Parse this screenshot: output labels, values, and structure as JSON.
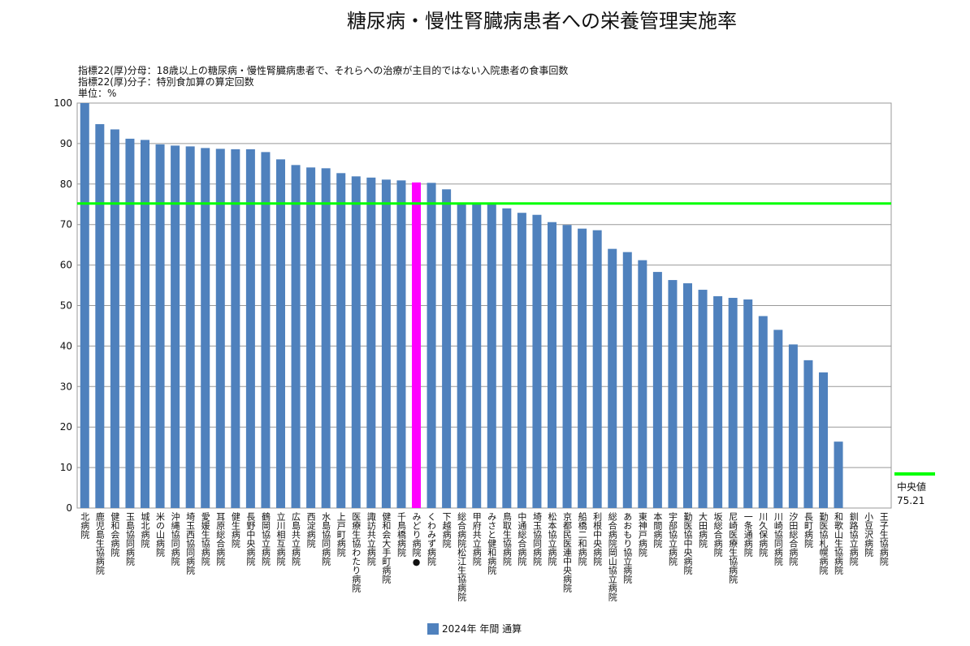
{
  "chart_data": {
    "type": "bar",
    "title": "糖尿病・慢性腎臓病患者への栄養管理実施率",
    "notes": [
      "指標22(厚)分母：18歳以上の糖尿病・慢性腎臓病患者で、それらへの治療が主目的ではない入院患者の食事回数",
      "指標22(厚)分子：特別食加算の算定回数",
      "単位：%"
    ],
    "ylim": [
      0,
      100
    ],
    "yticks": [
      0,
      10,
      20,
      30,
      40,
      50,
      60,
      70,
      80,
      90,
      100
    ],
    "grid": true,
    "categories": [
      "北病院",
      "鹿児島生協病院",
      "健和会病院",
      "玉島協同病院",
      "城北病院",
      "米の山病院",
      "沖縄協同病院",
      "埼玉西協同病院",
      "愛媛生協病院",
      "耳原総合病院",
      "健生病院",
      "長野中央病院",
      "鶴岡協立病院",
      "立川相互病院",
      "広島共立病院",
      "西淀病院",
      "水島協同病院",
      "上戸町病院",
      "医療生協わたり病院",
      "諏訪共立病院",
      "健和会大手町病院",
      "千鳥橋病院",
      "みどり病院●",
      "くわみず病院",
      "下越病院",
      "総合病院松江生協病院",
      "甲府共立病院",
      "みさと健和病院",
      "鳥取生協病院",
      "中通総合病院",
      "埼玉協同病院",
      "松本協立病院",
      "京都民医連中央病院",
      "船橋二和病院",
      "利根中央病院",
      "総合病院岡山協立病院",
      "あおもり協立病院",
      "東神戸病院",
      "本間病院",
      "宇部協立病院",
      "勤医協中央病院",
      "大田病院",
      "坂総合病院",
      "尼崎医療生協病院",
      "一条通病院",
      "川久保病院",
      "川崎協同病院",
      "汐田総合病院",
      "長町病院",
      "勤医協札幌病院",
      "和歌山生協病院",
      "釧路協立病院",
      "小豆沢病院",
      "王子生協病院"
    ],
    "series": [
      {
        "name": "2024年 年間 通算",
        "color": "#4f81bd",
        "values": [
          100,
          94.8,
          93.5,
          91.2,
          90.9,
          89.8,
          89.5,
          89.3,
          88.9,
          88.7,
          88.6,
          88.6,
          87.9,
          86.1,
          84.7,
          84.1,
          83.9,
          82.7,
          81.9,
          81.6,
          81.1,
          80.9,
          80.4,
          80.3,
          78.7,
          75.3,
          75.3,
          75.2,
          74.0,
          72.9,
          72.4,
          70.6,
          69.9,
          69.0,
          68.6,
          64.0,
          63.2,
          61.2,
          58.3,
          56.3,
          55.5,
          53.9,
          52.3,
          51.9,
          51.5,
          47.4,
          44.0,
          40.4,
          36.5,
          33.5,
          16.4,
          0,
          0,
          0
        ]
      }
    ],
    "highlight": {
      "category": "みどり病院●",
      "color": "#ff00ff"
    },
    "median": {
      "label": "中央値",
      "value": 75.21,
      "color": "#00ff00"
    },
    "legend": {
      "position": "bottom",
      "label": "2024年 年間 通算"
    }
  }
}
